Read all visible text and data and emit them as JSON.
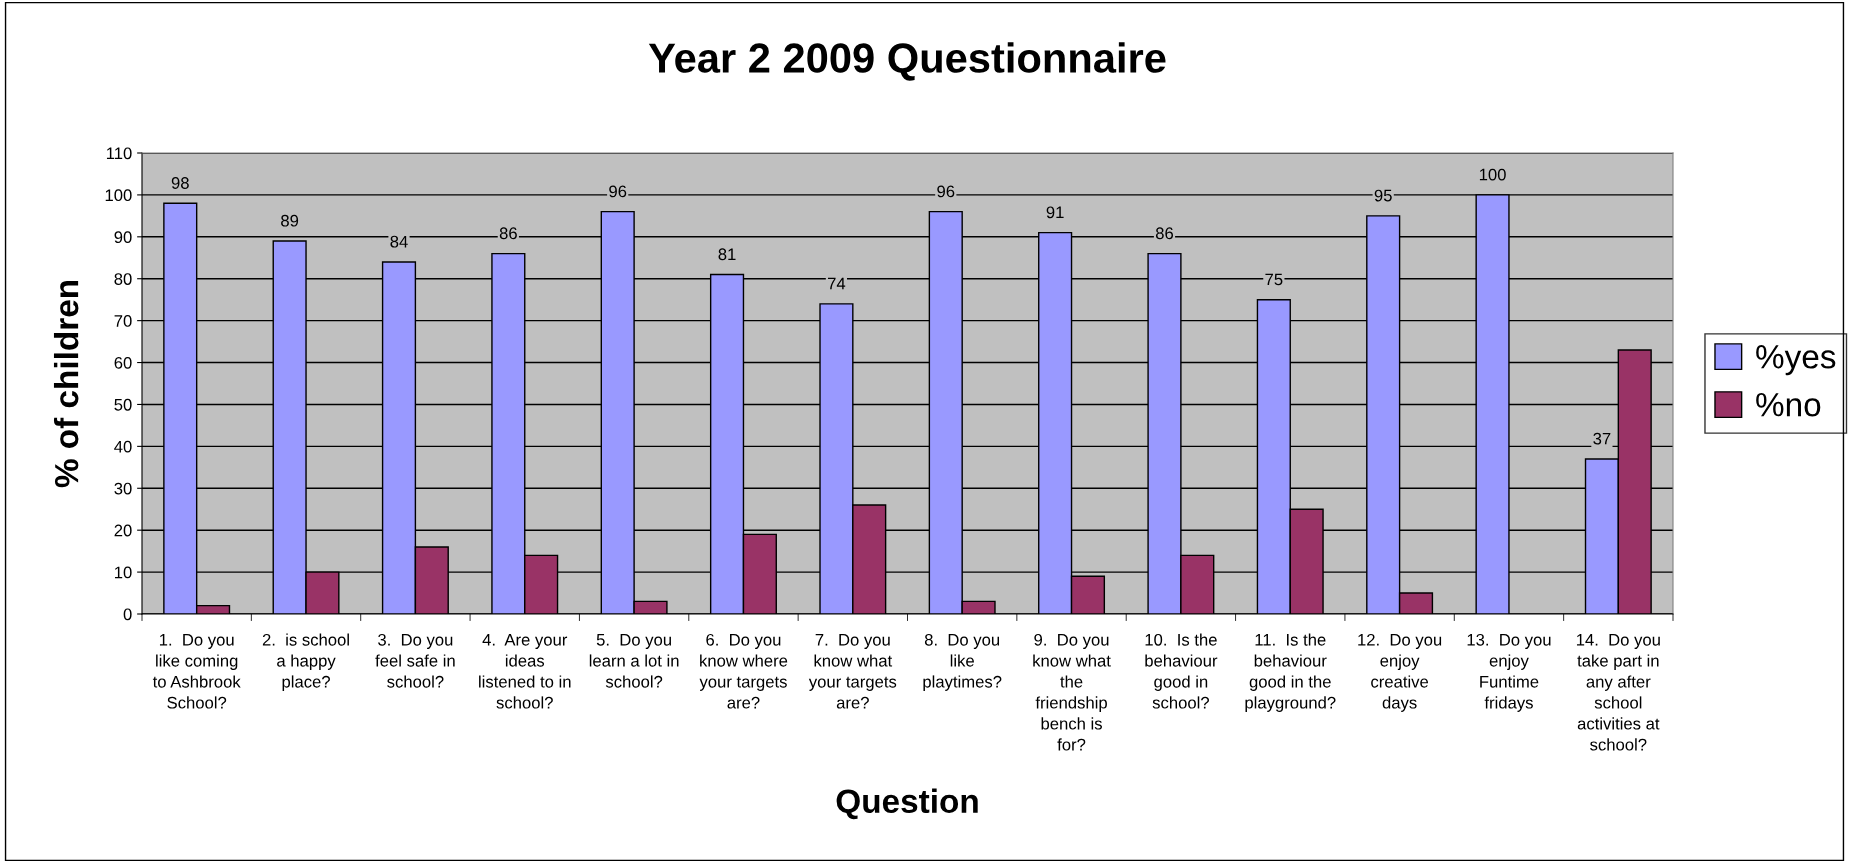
{
  "chart_data": {
    "type": "bar",
    "title": "Year 2 2009 Questionnaire",
    "xlabel": "Question",
    "ylabel": "% of children",
    "categories": [
      "1.  Do you\nlike coming\nto Ashbrook\nSchool?",
      "2.  is school\na happy\nplace?",
      "3.  Do you\nfeel safe in\nschool?",
      "4.  Are your\nideas\nlistened to in\nschool?",
      "5.  Do you\nlearn a lot in\nschool?",
      "6.  Do you\nknow where\nyour targets\nare?",
      "7.  Do you\nknow what\nyour targets\nare?",
      "8.  Do you\nlike\nplaytimes?",
      "9.  Do you\nknow what\nthe\nfriendship\nbench is\nfor?",
      "10.  Is the\nbehaviour\ngood in\nschool?",
      "11.  Is the\nbehaviour\ngood in the\nplayground?",
      "12.  Do you\nenjoy\ncreative\ndays",
      "13.  Do you\nenjoy\nFuntime\nfridays",
      "14.  Do you\ntake part in\nany after\nschool\nactivities at\nschool?"
    ],
    "series": [
      {
        "name": "%yes",
        "color": "#9999ff",
        "values": [
          98,
          89,
          84,
          86,
          96,
          81,
          74,
          96,
          91,
          86,
          75,
          95,
          100,
          37
        ],
        "value_labels": [
          "98",
          "89",
          "84",
          "86",
          "96",
          "81",
          "74",
          "96",
          "91",
          "86",
          "75",
          "95",
          "100",
          "37"
        ]
      },
      {
        "name": "%no",
        "color": "#993366",
        "values": [
          2,
          10,
          16,
          14,
          3,
          19,
          26,
          3,
          9,
          14,
          25,
          5,
          null,
          63
        ]
      }
    ],
    "ylim": [
      0,
      110
    ],
    "yticks": [
      0,
      10,
      20,
      30,
      40,
      50,
      60,
      70,
      80,
      90,
      100,
      110
    ],
    "grid": "y",
    "legend": "right"
  }
}
